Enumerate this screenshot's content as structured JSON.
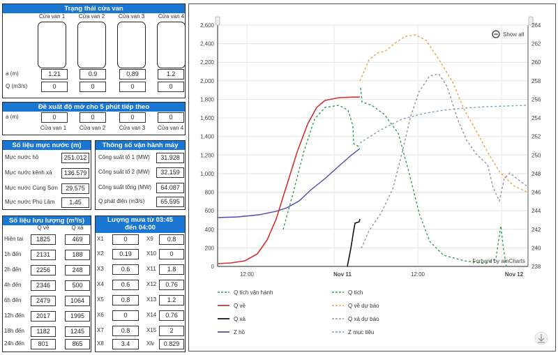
{
  "gate_status": {
    "title": "Trạng thái cửa van",
    "gates": [
      "Cửa van 1",
      "Cửa van 2",
      "Cửa van 3",
      "Cửa van 4"
    ],
    "row_a_label": "a (m)",
    "row_q_label": "Q (m3/s)",
    "a_values": [
      "1.21",
      "0.9",
      "0.89",
      "1.2"
    ],
    "q_values": [
      "0",
      "0",
      "0",
      "0"
    ]
  },
  "proposal": {
    "title": "Đề xuất độ mở cho 5 phút tiếp theo",
    "row_label": "a (m)",
    "values": [
      "0",
      "0",
      "0",
      "0"
    ],
    "gates": [
      "Cửa van 1",
      "Cửa van 2",
      "Cửa van 3",
      "Cửa van 4"
    ]
  },
  "water_level": {
    "title": "Số liệu mực nước (m)",
    "rows": [
      {
        "label": "Mực nước hồ",
        "value": "251.012"
      },
      {
        "label": "Mực nước kênh xả",
        "value": "136.579"
      },
      {
        "label": "Mực nước Cùng Sơn",
        "value": "29.575"
      },
      {
        "label": "Mực nước Phú Lâm",
        "value": "1.45"
      }
    ]
  },
  "operation": {
    "title": "Thông số vận hành máy",
    "rows": [
      {
        "label": "Công suất tổ 1 (MW)",
        "value": "31.928"
      },
      {
        "label": "Công suất tổ 2 (MW)",
        "value": "32.159"
      },
      {
        "label": "Công suất tổng (MW)",
        "value": "64.087"
      },
      {
        "label": "Q phát điện (m3/s)",
        "value": "65.595"
      }
    ]
  },
  "flow": {
    "title": "Số liệu lưu lượng (m³/s)",
    "col1": "Q về",
    "col2": "Q xả",
    "rows": [
      {
        "label": "Hiện tại",
        "qve": "1825",
        "qxa": "469"
      },
      {
        "label": "1h đến",
        "qve": "2131",
        "qxa": "188"
      },
      {
        "label": "2h đến",
        "qve": "2256",
        "qxa": "248"
      },
      {
        "label": "4h đến",
        "qve": "2346",
        "qxa": "500"
      },
      {
        "label": "6h đến",
        "qve": "2479",
        "qxa": "1064"
      },
      {
        "label": "12h đến",
        "qve": "2017",
        "qxa": "1995"
      },
      {
        "label": "18h đến",
        "qve": "1182",
        "qxa": "1245"
      },
      {
        "label": "24h đến",
        "qve": "801",
        "qxa": "865"
      }
    ]
  },
  "rain": {
    "title_line1": "Lượng mưa từ 03:45",
    "title_line2": "đến 04:00",
    "left": [
      {
        "label": "X1",
        "value": "0"
      },
      {
        "label": "X2",
        "value": "0.19"
      },
      {
        "label": "X3",
        "value": "0.6"
      },
      {
        "label": "X4",
        "value": "0.6"
      },
      {
        "label": "X5",
        "value": "0.8"
      },
      {
        "label": "X6",
        "value": "0"
      },
      {
        "label": "X7",
        "value": "0.8"
      },
      {
        "label": "X8",
        "value": "3.4"
      }
    ],
    "right": [
      {
        "label": "X9",
        "value": "0.8"
      },
      {
        "label": "X10",
        "value": "0"
      },
      {
        "label": "X11",
        "value": "1.8"
      },
      {
        "label": "X12",
        "value": "0.76"
      },
      {
        "label": "X13",
        "value": "1.2"
      },
      {
        "label": "X14",
        "value": "0.76"
      },
      {
        "label": "X15",
        "value": "2"
      },
      {
        "label": "Xlv",
        "value": "0.829"
      }
    ]
  },
  "chart": {
    "show_all": "Show all",
    "credits": "Forbard by amCharts",
    "left_ticks": [
      "2,600",
      "2,400",
      "2,200",
      "2,000",
      "1,800",
      "1,600",
      "1,400",
      "1,200",
      "1,000",
      "800",
      "600",
      "400",
      "200",
      "0"
    ],
    "right_ticks": [
      "264",
      "262",
      "260",
      "258",
      "256",
      "254",
      "252",
      "250",
      "248",
      "246",
      "244",
      "242",
      "240",
      "238"
    ],
    "x_ticks": [
      "12:00",
      "Nov 11",
      "12:00",
      "Nov 12"
    ],
    "colors": {
      "q_tich_van_hanh": "#2e9e4f",
      "q_tich": "#2e9e4f",
      "q_ve": "#d32f2f",
      "q_ve_du_bao": "#f0a040",
      "q_xa": "#111111",
      "q_xa_du_bao": "#9a8ea0",
      "z_ho": "#4a4ab0",
      "z_muc_tieu": "#7a9ec0"
    },
    "legend": [
      {
        "label": "Q tích vận hành",
        "key": "q_tich_van_hanh",
        "dash": true
      },
      {
        "label": "Q tích",
        "key": "q_tich",
        "dash": true
      },
      {
        "label": "Q về",
        "key": "q_ve",
        "dash": false
      },
      {
        "label": "Q về dự báo",
        "key": "q_ve_du_bao",
        "dash": true
      },
      {
        "label": "Q xả",
        "key": "q_xa",
        "dash": false
      },
      {
        "label": "Q xả dự báo",
        "key": "q_xa_du_bao",
        "dash": true
      },
      {
        "label": "Z hồ",
        "key": "z_ho",
        "dash": false
      },
      {
        "label": "Z mục tiêu",
        "key": "z_muc_tieu",
        "dash": true
      }
    ]
  }
}
